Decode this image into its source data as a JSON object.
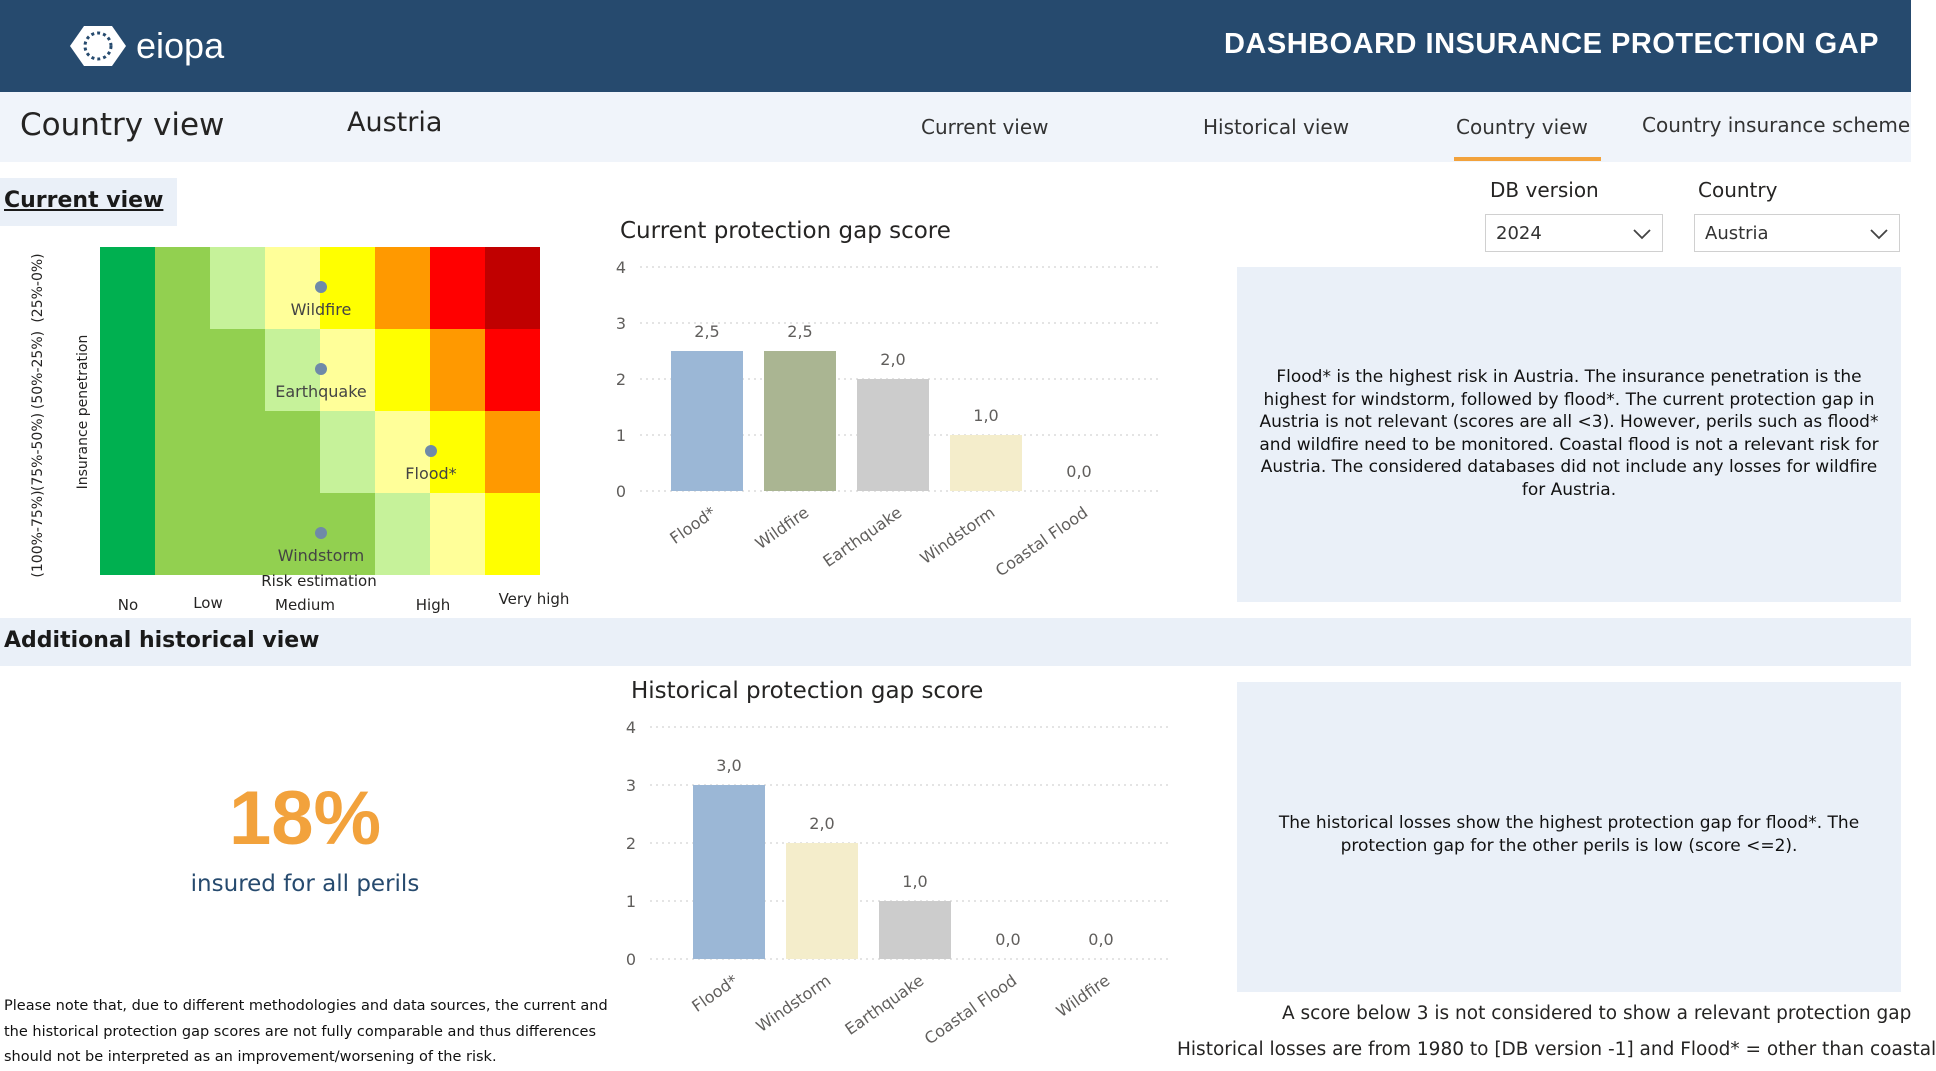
{
  "header": {
    "logo_text": "eiopa",
    "title": "DASHBOARD INSURANCE PROTECTION GAP"
  },
  "navbar": {
    "page_title": "Country view",
    "country": "Austria",
    "tabs": [
      {
        "label": "Current view",
        "active": false
      },
      {
        "label": "Historical view",
        "active": false
      },
      {
        "label": "Country view",
        "active": true
      },
      {
        "label": "Country insurance scheme",
        "active": false
      }
    ]
  },
  "filters": {
    "db_version_label": "DB version",
    "db_version_value": "2024",
    "country_label": "Country",
    "country_value": "Austria"
  },
  "sections": {
    "current_view": "Current view",
    "additional_historical": "Additional historical view"
  },
  "heatmap": {
    "y_title": "Insurance penetration",
    "y_labels": [
      "(100%-75%)",
      "(75%-50%)",
      "(50%-25%)",
      "(25%-0%)"
    ],
    "x_title": "Risk estimation",
    "x_labels": [
      "No",
      "Low",
      "Medium",
      "High",
      "Very high"
    ],
    "colors": [
      [
        "#00b050",
        "#92d050",
        "#c6f29a",
        "#ffff99",
        "#ffff00",
        "#ff9900",
        "#ff0000",
        "#c00000"
      ],
      [
        "#00b050",
        "#92d050",
        "#92d050",
        "#c6f29a",
        "#ffff99",
        "#ffff00",
        "#ff9900",
        "#ff0000"
      ],
      [
        "#00b050",
        "#92d050",
        "#92d050",
        "#92d050",
        "#c6f29a",
        "#ffff99",
        "#ffff00",
        "#ff9900"
      ],
      [
        "#00b050",
        "#92d050",
        "#92d050",
        "#92d050",
        "#92d050",
        "#c6f29a",
        "#ffff99",
        "#ffff00"
      ]
    ],
    "points": [
      {
        "label": "Wildfire",
        "col": 4,
        "row": 0
      },
      {
        "label": "Earthquake",
        "col": 4,
        "row": 1
      },
      {
        "label": "Flood*",
        "col": 6,
        "row": 2
      },
      {
        "label": "Windstorm",
        "col": 4,
        "row": 3
      }
    ],
    "marker_color": "#6f8aa8"
  },
  "chart_data": [
    {
      "type": "bar",
      "title": "Current protection gap score",
      "categories": [
        "Flood*",
        "Wildfire",
        "Earthquake",
        "Windstorm",
        "Coastal Flood"
      ],
      "values": [
        2.5,
        2.5,
        2.0,
        1.0,
        0.0
      ],
      "value_labels": [
        "2,5",
        "2,5",
        "2,0",
        "1,0",
        "0,0"
      ],
      "colors": [
        "#9bb7d6",
        "#aab592",
        "#cccccc",
        "#f4edcb",
        "#e8e8e8"
      ],
      "yticks": [
        "0",
        "1",
        "2",
        "3",
        "4"
      ],
      "ylim": [
        0,
        4
      ],
      "grid": true
    },
    {
      "type": "bar",
      "title": "Historical protection gap score",
      "categories": [
        "Flood*",
        "Windstorm",
        "Earthquake",
        "Coastal Flood",
        "Wildfire"
      ],
      "values": [
        3.0,
        2.0,
        1.0,
        0.0,
        0.0
      ],
      "value_labels": [
        "3,0",
        "2,0",
        "1,0",
        "0,0",
        "0,0"
      ],
      "colors": [
        "#9bb7d6",
        "#f4edcb",
        "#cccccc",
        "#e8e8e8",
        "#aab592"
      ],
      "yticks": [
        "0",
        "1",
        "2",
        "3",
        "4"
      ],
      "ylim": [
        0,
        4
      ],
      "grid": true
    }
  ],
  "current_text": "Flood* is the highest risk in Austria. The insurance penetration is the highest for windstorm, followed by flood*. The current protection gap in Austria is not relevant (scores are all <3). However, perils such as flood* and wildfire need to be monitored. Coastal flood is not a relevant risk for Austria. The considered databases did not include any losses for wildfire for Austria.",
  "historical_text": "The historical losses show the highest protection gap for flood*. The protection gap for the other perils is low (score <=2).",
  "kpi": {
    "value": "18%",
    "label": "insured for all perils"
  },
  "disclaimer": "Please note that, due to different methodologies and data sources, the current and the historical protection gap scores are not fully comparable and thus differences should not be interpreted as an improvement/worsening of the risk.",
  "notes": {
    "score_note": "A score below 3 is not considered to show a relevant protection gap",
    "losses_note": "Historical losses are from 1980 to [DB version -1] and Flood* = other than coastal"
  },
  "colors": {
    "header_bg": "#264a6e",
    "accent": "#f2a23c",
    "panel_bg": "#eaf0f8"
  }
}
